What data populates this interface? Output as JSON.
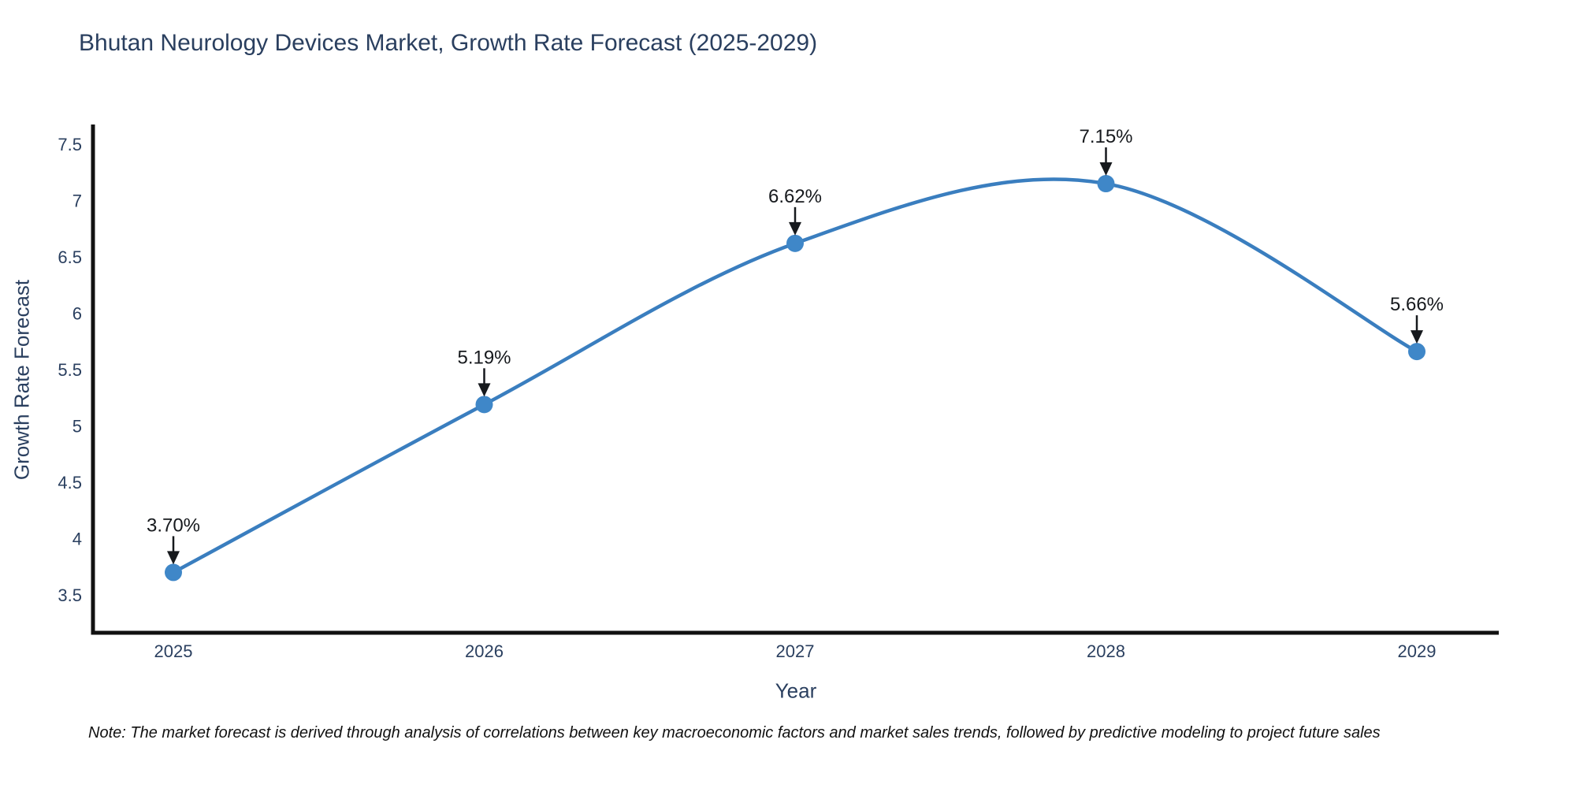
{
  "title": "Bhutan Neurology Devices Market, Growth Rate Forecast (2025-2029)",
  "note": "Note: The market forecast is derived through analysis of correlations between key macroeconomic factors and market sales trends, followed by predictive modeling to project future sales",
  "colors": {
    "line": "#3a7ebf",
    "marker": "#3f87c8",
    "axis_line": "#111111",
    "axis_text": "#2a3f5f",
    "title_text": "#2a3f5f",
    "annotation_text": "#16191d",
    "arrow": "#16191d",
    "background": "#ffffff"
  },
  "chart_data": {
    "type": "line",
    "line_shape": "spline",
    "title": "Bhutan Neurology Devices Market, Growth Rate Forecast (2025-2029)",
    "xlabel": "Year",
    "ylabel": "Growth Rate Forecast",
    "x": [
      2025,
      2026,
      2027,
      2028,
      2029
    ],
    "values": [
      3.7,
      5.19,
      6.62,
      7.15,
      5.66
    ],
    "point_labels": [
      "3.70%",
      "5.19%",
      "6.62%",
      "7.15%",
      "5.66%"
    ],
    "x_tick_labels": [
      "2025",
      "2026",
      "2027",
      "2028",
      "2029"
    ],
    "y_tick_labels": [
      "3.5",
      "4",
      "4.5",
      "5",
      "5.5",
      "6",
      "6.5",
      "7",
      "7.5"
    ],
    "y_ticks": [
      3.5,
      4,
      4.5,
      5,
      5.5,
      6,
      6.5,
      7,
      7.5
    ],
    "ylim": [
      3.16,
      7.68
    ],
    "grid": false,
    "legend": false,
    "annotations_have_arrows": true
  }
}
